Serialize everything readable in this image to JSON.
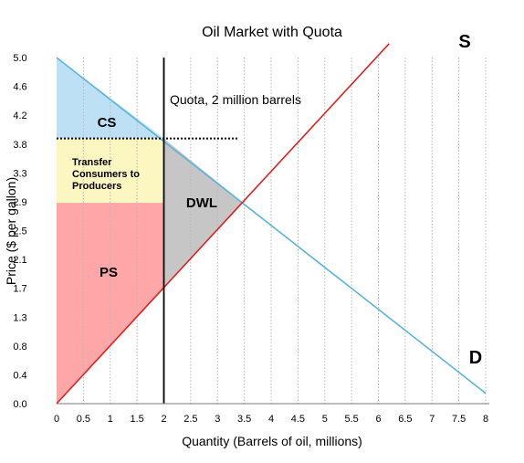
{
  "chart_data": {
    "type": "line",
    "title": "Oil Market with Quota",
    "xlabel": "Quantity (Barrels of oil, millions)",
    "ylabel": "Price ($ per gallon)",
    "xlim": [
      0,
      8
    ],
    "ylim": [
      0,
      5.0
    ],
    "x_ticks": [
      "0",
      "0.5",
      "1",
      "1.5",
      "2",
      "2.5",
      "3",
      "3.5",
      "4",
      "4.5",
      "5",
      "5.5",
      "6",
      "6.5",
      "7",
      "7.5",
      "8"
    ],
    "y_ticks": [
      "0.0",
      "0.4",
      "0.8",
      "1.3",
      "1.7",
      "2.1",
      "2.5",
      "2.9",
      "3.3",
      "3.8",
      "4.2",
      "4.6",
      "5.0"
    ],
    "grid": "vertical dotted",
    "series": [
      {
        "name": "D",
        "color": "#5ab4dc",
        "points": [
          [
            0,
            5.0
          ],
          [
            8,
            0.15
          ]
        ]
      },
      {
        "name": "S",
        "color": "#dd2222",
        "points": [
          [
            0,
            0.0
          ],
          [
            6.2,
            5.2
          ]
        ]
      }
    ],
    "quota": {
      "label": "Quota, 2 million barrels",
      "x": 2,
      "price_line": 3.83
    },
    "equilibrium": {
      "x": 3.48,
      "y": 2.9
    },
    "regions": [
      {
        "label": "CS",
        "color": "#bde0f4"
      },
      {
        "label": "Transfer\nConsumers to\nProducers",
        "color": "#fcf6c0"
      },
      {
        "label": "PS",
        "color": "#ffa6a8"
      },
      {
        "label": "DWL",
        "color": "#c6c6c6"
      }
    ],
    "curve_labels": {
      "supply": "S",
      "demand": "D"
    }
  }
}
